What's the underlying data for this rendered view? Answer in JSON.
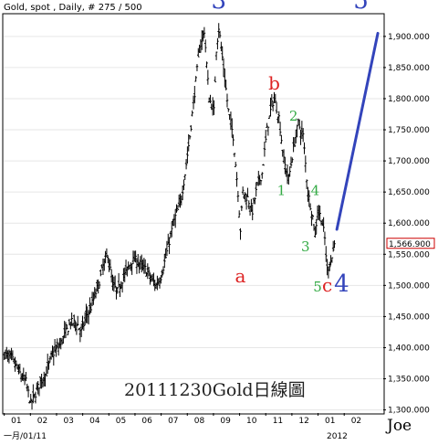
{
  "chart_data": {
    "type": "ohlc",
    "header": "Gold, spot , Daily, # 275 / 500",
    "watermark": "20111230Gold日線圖",
    "author": "Joe",
    "x_axis": {
      "start_label": "一月/01/11",
      "year_label": "2012",
      "months": [
        "01",
        "02",
        "03",
        "04",
        "05",
        "06",
        "07",
        "08",
        "09",
        "10",
        "11",
        "12",
        "01",
        "02"
      ]
    },
    "y_axis": {
      "ylim": [
        1295,
        1935
      ],
      "ticks": [
        "1,300.000",
        "1,350.000",
        "1,400.000",
        "1,450.000",
        "1,500.000",
        "1,550.000",
        "1,600.000",
        "1,650.000",
        "1,700.000",
        "1,750.000",
        "1,800.000",
        "1,850.000",
        "1,900.000"
      ],
      "tick_values": [
        1300,
        1350,
        1400,
        1450,
        1500,
        1550,
        1600,
        1650,
        1700,
        1750,
        1800,
        1850,
        1900
      ]
    },
    "last_price_label": "1,566.900",
    "last_price": 1566.9,
    "series_shape": [
      [
        0,
        1390
      ],
      [
        6,
        1382
      ],
      [
        10,
        1370
      ],
      [
        14,
        1355
      ],
      [
        18,
        1345
      ],
      [
        22,
        1310
      ],
      [
        25,
        1322
      ],
      [
        30,
        1345
      ],
      [
        35,
        1360
      ],
      [
        40,
        1390
      ],
      [
        45,
        1400
      ],
      [
        50,
        1420
      ],
      [
        55,
        1440
      ],
      [
        60,
        1440
      ],
      [
        64,
        1425
      ],
      [
        68,
        1450
      ],
      [
        72,
        1465
      ],
      [
        78,
        1500
      ],
      [
        82,
        1530
      ],
      [
        86,
        1550
      ],
      [
        90,
        1500
      ],
      [
        94,
        1490
      ],
      [
        98,
        1510
      ],
      [
        102,
        1525
      ],
      [
        106,
        1540
      ],
      [
        110,
        1540
      ],
      [
        114,
        1530
      ],
      [
        118,
        1525
      ],
      [
        122,
        1510
      ],
      [
        126,
        1500
      ],
      [
        130,
        1515
      ],
      [
        134,
        1545
      ],
      [
        138,
        1580
      ],
      [
        142,
        1610
      ],
      [
        146,
        1630
      ],
      [
        150,
        1680
      ],
      [
        154,
        1740
      ],
      [
        158,
        1810
      ],
      [
        162,
        1880
      ],
      [
        166,
        1910
      ],
      [
        170,
        1800
      ],
      [
        174,
        1780
      ],
      [
        176,
        1880
      ],
      [
        178,
        1915
      ],
      [
        182,
        1850
      ],
      [
        186,
        1780
      ],
      [
        190,
        1740
      ],
      [
        194,
        1650
      ],
      [
        196,
        1590
      ],
      [
        198,
        1650
      ],
      [
        202,
        1640
      ],
      [
        206,
        1620
      ],
      [
        210,
        1660
      ],
      [
        214,
        1680
      ],
      [
        218,
        1750
      ],
      [
        222,
        1790
      ],
      [
        224,
        1800
      ],
      [
        228,
        1770
      ],
      [
        232,
        1700
      ],
      [
        236,
        1670
      ],
      [
        240,
        1720
      ],
      [
        244,
        1760
      ],
      [
        248,
        1740
      ],
      [
        252,
        1650
      ],
      [
        256,
        1610
      ],
      [
        258,
        1580
      ],
      [
        260,
        1620
      ],
      [
        263,
        1610
      ],
      [
        266,
        1575
      ],
      [
        268,
        1525
      ],
      [
        272,
        1545
      ],
      [
        274,
        1567
      ]
    ],
    "projection": {
      "from": [
        276,
        1590
      ],
      "to": [
        310,
        1905
      ],
      "color": "#3344bb"
    },
    "wave_labels": [
      {
        "text": "3",
        "x": 178,
        "y": 1945,
        "color": "#3344bb",
        "size": 26
      },
      {
        "text": "5",
        "x": 296,
        "y": 1945,
        "color": "#3344bb",
        "size": 26
      },
      {
        "text": "b",
        "x": 224,
        "y": 1815,
        "color": "#dd2222",
        "size": 20
      },
      {
        "text": "a",
        "x": 196,
        "y": 1505,
        "color": "#dd2222",
        "size": 20
      },
      {
        "text": "2",
        "x": 240,
        "y": 1765,
        "color": "#33aa44",
        "size": 15
      },
      {
        "text": "1",
        "x": 230,
        "y": 1645,
        "color": "#33aa44",
        "size": 15
      },
      {
        "text": "4",
        "x": 258,
        "y": 1645,
        "color": "#33aa44",
        "size": 15
      },
      {
        "text": "3",
        "x": 250,
        "y": 1555,
        "color": "#33aa44",
        "size": 15
      },
      {
        "text": "5",
        "x": 260,
        "y": 1490,
        "color": "#33aa44",
        "size": 15
      },
      {
        "text": "c",
        "x": 268,
        "y": 1490,
        "color": "#dd2222",
        "size": 20
      },
      {
        "text": "4",
        "x": 280,
        "y": 1490,
        "color": "#3344bb",
        "size": 26
      }
    ]
  }
}
